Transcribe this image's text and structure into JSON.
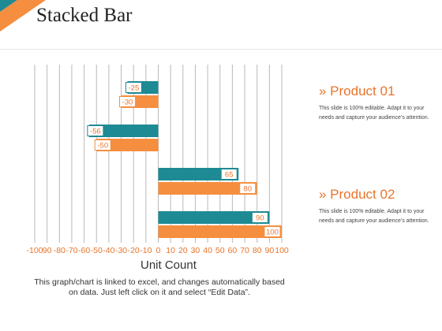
{
  "slide": {
    "title": "Stacked Bar",
    "caption": "This graph/chart is linked to excel, and changes automatically based on data. Just left click on it and select “Edit Data”."
  },
  "products": [
    {
      "title": "» Product 01",
      "text": "This slide is 100% editable. Adapt it to your needs and capture your audience’s attention."
    },
    {
      "title": "» Product 02",
      "text": "This slide is 100% editable. Adapt it to your needs and capture your audience’s attention."
    }
  ],
  "colors": {
    "teal": "#1e8a94",
    "orange": "#f58e3f",
    "tick_label": "#e8742b",
    "grid": "#b9b9b9"
  },
  "chart_data": {
    "type": "bar",
    "orientation": "horizontal",
    "xlabel": "Unit Count",
    "xlim": [
      -100,
      100
    ],
    "grid": true,
    "tick_labels": [
      "-100",
      "90",
      "-80",
      "-70",
      "-60",
      "-50",
      "-40",
      "-30",
      "-20",
      "-10",
      "0",
      "10",
      "20",
      "30",
      "40",
      "50",
      "60",
      "70",
      "80",
      "90",
      "100"
    ],
    "groups": [
      {
        "teal": -25,
        "orange": -30
      },
      {
        "teal": -56,
        "orange": -50
      },
      {
        "teal": 65,
        "orange": 80
      },
      {
        "teal": 90,
        "orange": 100
      }
    ]
  }
}
